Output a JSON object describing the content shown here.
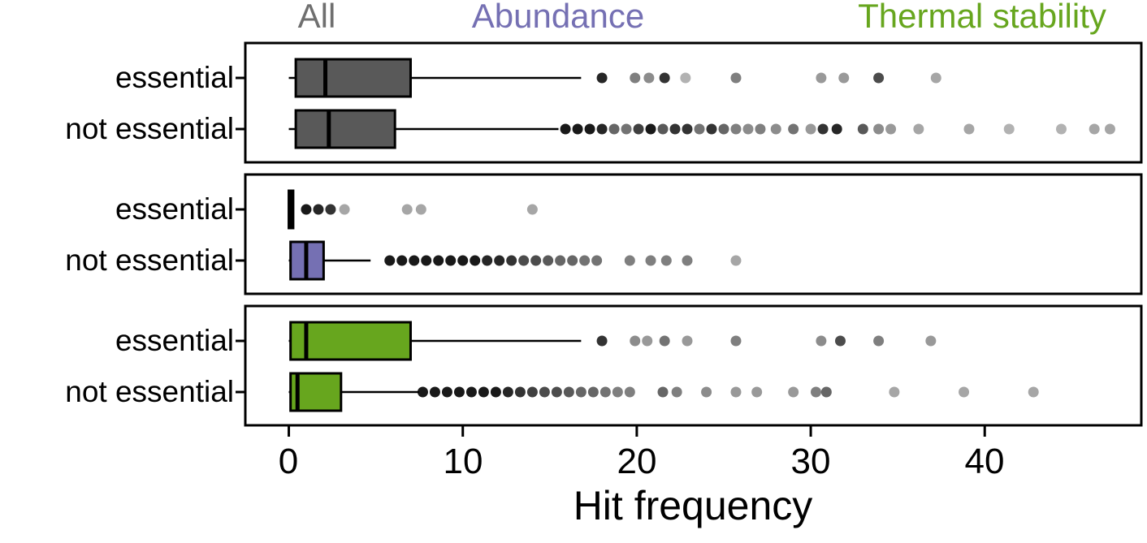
{
  "figure": {
    "background": "#ffffff",
    "text_color": "#000000"
  },
  "axis": {
    "xlabel": "Hit frequency",
    "tick_labels": [
      "0",
      "10",
      "20",
      "30",
      "40"
    ]
  },
  "chart_data": {
    "type": "boxplot",
    "orientation": "horizontal",
    "xlabel": "Hit frequency",
    "xlim": [
      -2.5,
      49
    ],
    "x_ticks": [
      0,
      10,
      20,
      30,
      40
    ],
    "outlier_color": "#000000",
    "panels": [
      {
        "title": "All",
        "title_color": "#6f6f6f",
        "box_fill": "#595959",
        "rows": [
          {
            "label": "essential",
            "whisker_low": 0,
            "q1": 0.4,
            "median": 2.1,
            "q3": 7.0,
            "whisker_high": 16.8,
            "outliers": [
              [
                18,
                0.85
              ],
              [
                19.9,
                0.5
              ],
              [
                20.7,
                0.45
              ],
              [
                21.6,
                0.8
              ],
              [
                22.8,
                0.3
              ],
              [
                25.7,
                0.5
              ],
              [
                30.6,
                0.4
              ],
              [
                31.9,
                0.4
              ],
              [
                33.9,
                0.7
              ],
              [
                37.2,
                0.35
              ]
            ]
          },
          {
            "label": "not essential",
            "whisker_low": 0,
            "q1": 0.4,
            "median": 2.3,
            "q3": 6.1,
            "whisker_high": 15.5,
            "outliers": [
              [
                15.9,
                0.9
              ],
              [
                16.6,
                0.9
              ],
              [
                17.3,
                0.9
              ],
              [
                18,
                0.85
              ],
              [
                18.7,
                0.6
              ],
              [
                19.4,
                0.55
              ],
              [
                20.1,
                0.75
              ],
              [
                20.8,
                0.9
              ],
              [
                21.5,
                0.65
              ],
              [
                22.2,
                0.8
              ],
              [
                22.9,
                0.8
              ],
              [
                23.6,
                0.55
              ],
              [
                24.3,
                0.8
              ],
              [
                25,
                0.6
              ],
              [
                25.7,
                0.5
              ],
              [
                26.4,
                0.45
              ],
              [
                27.1,
                0.5
              ],
              [
                28,
                0.45
              ],
              [
                29,
                0.55
              ],
              [
                30,
                0.4
              ],
              [
                30.7,
                0.8
              ],
              [
                31.5,
                0.85
              ],
              [
                33,
                0.65
              ],
              [
                33.9,
                0.45
              ],
              [
                34.6,
                0.4
              ],
              [
                36.2,
                0.35
              ],
              [
                39.1,
                0.35
              ],
              [
                41.4,
                0.3
              ],
              [
                44.4,
                0.3
              ],
              [
                46.3,
                0.35
              ],
              [
                47.2,
                0.35
              ]
            ]
          }
        ]
      },
      {
        "title": "Abundance",
        "title_color": "#7570b3",
        "box_fill": "#7570b3",
        "rows": [
          {
            "label": "essential",
            "whisker_low": 0,
            "q1": 0,
            "median": 0.1,
            "q3": 0.25,
            "whisker_high": 0.25,
            "outliers": [
              [
                1,
                0.9
              ],
              [
                1.7,
                0.85
              ],
              [
                2.4,
                0.8
              ],
              [
                3.2,
                0.35
              ],
              [
                6.8,
                0.35
              ],
              [
                7.6,
                0.35
              ],
              [
                14,
                0.35
              ]
            ]
          },
          {
            "label": "not essential",
            "whisker_low": 0,
            "q1": 0.1,
            "median": 1.0,
            "q3": 2.0,
            "whisker_high": 4.7,
            "outliers": [
              [
                5.8,
                0.9
              ],
              [
                6.5,
                0.9
              ],
              [
                7.2,
                0.9
              ],
              [
                7.9,
                0.9
              ],
              [
                8.6,
                0.9
              ],
              [
                9.3,
                0.9
              ],
              [
                10,
                0.9
              ],
              [
                10.7,
                0.9
              ],
              [
                11.4,
                0.85
              ],
              [
                12.1,
                0.85
              ],
              [
                12.8,
                0.8
              ],
              [
                13.5,
                0.7
              ],
              [
                14.2,
                0.7
              ],
              [
                14.9,
                0.65
              ],
              [
                15.6,
                0.6
              ],
              [
                16.3,
                0.6
              ],
              [
                17,
                0.55
              ],
              [
                17.7,
                0.55
              ],
              [
                19.6,
                0.5
              ],
              [
                20.8,
                0.5
              ],
              [
                21.7,
                0.5
              ],
              [
                22.9,
                0.5
              ],
              [
                25.7,
                0.35
              ]
            ]
          }
        ]
      },
      {
        "title": "Thermal stability",
        "title_color": "#67a61e",
        "box_fill": "#67a61e",
        "rows": [
          {
            "label": "essential",
            "whisker_low": 0,
            "q1": 0.1,
            "median": 1.0,
            "q3": 7.0,
            "whisker_high": 16.8,
            "outliers": [
              [
                18,
                0.8
              ],
              [
                19.9,
                0.45
              ],
              [
                20.6,
                0.4
              ],
              [
                21.6,
                0.55
              ],
              [
                22.9,
                0.4
              ],
              [
                25.7,
                0.5
              ],
              [
                30.6,
                0.45
              ],
              [
                31.7,
                0.7
              ],
              [
                33.9,
                0.5
              ],
              [
                36.9,
                0.4
              ]
            ]
          },
          {
            "label": "not essential",
            "whisker_low": 0,
            "q1": 0.1,
            "median": 0.5,
            "q3": 3.0,
            "whisker_high": 7.5,
            "outliers": [
              [
                7.7,
                0.9
              ],
              [
                8.4,
                0.9
              ],
              [
                9.1,
                0.9
              ],
              [
                9.8,
                0.9
              ],
              [
                10.5,
                0.9
              ],
              [
                11.2,
                0.9
              ],
              [
                11.9,
                0.9
              ],
              [
                12.6,
                0.85
              ],
              [
                13.3,
                0.8
              ],
              [
                14,
                0.75
              ],
              [
                14.7,
                0.7
              ],
              [
                15.4,
                0.7
              ],
              [
                16.1,
                0.65
              ],
              [
                16.8,
                0.6
              ],
              [
                17.5,
                0.6
              ],
              [
                18.2,
                0.55
              ],
              [
                18.9,
                0.5
              ],
              [
                19.6,
                0.5
              ],
              [
                21.5,
                0.6
              ],
              [
                22.3,
                0.5
              ],
              [
                24,
                0.45
              ],
              [
                25.7,
                0.4
              ],
              [
                26.9,
                0.4
              ],
              [
                29,
                0.4
              ],
              [
                30.3,
                0.5
              ],
              [
                30.9,
                0.6
              ],
              [
                34.8,
                0.35
              ],
              [
                38.8,
                0.35
              ],
              [
                42.8,
                0.35
              ]
            ]
          }
        ]
      }
    ]
  }
}
